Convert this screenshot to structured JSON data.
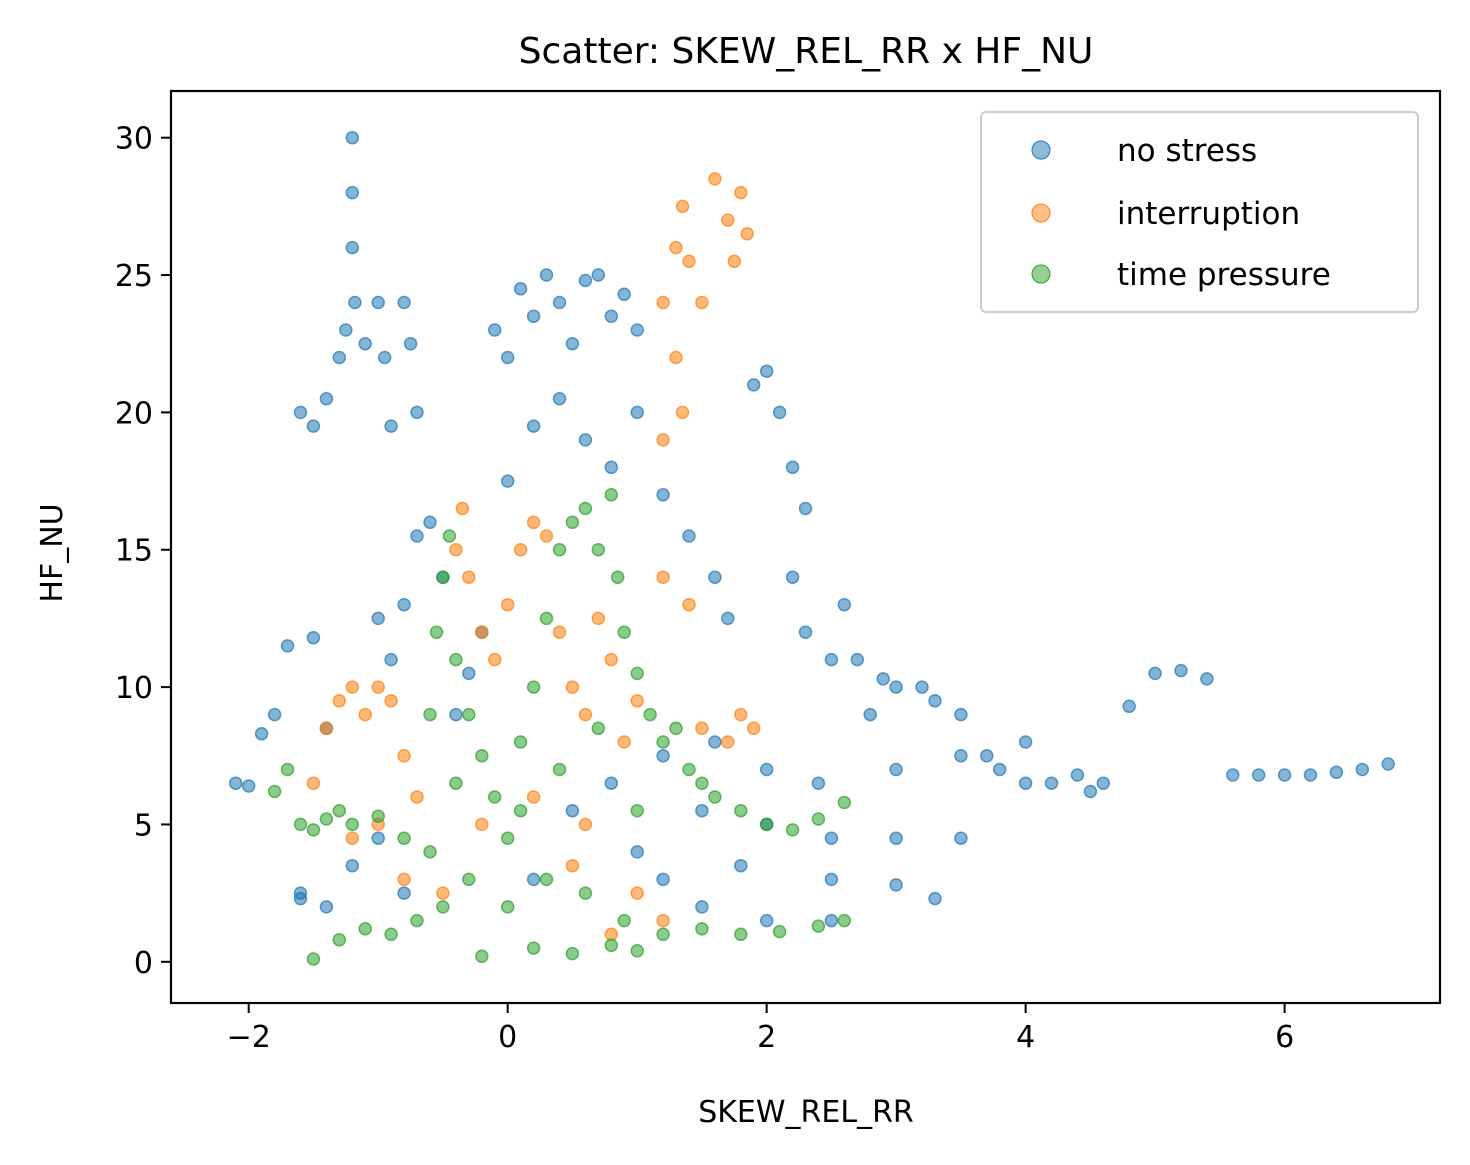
{
  "chart_data": {
    "type": "scatter",
    "title": "Scatter: SKEW_REL_RR x HF_NU",
    "xlabel": "SKEW_REL_RR",
    "ylabel": "HF_NU",
    "xlim": [
      -2.6,
      7.2
    ],
    "ylim": [
      -1.5,
      31.7
    ],
    "x_ticks": [
      -2,
      0,
      2,
      4,
      6
    ],
    "x_tick_labels": [
      "−2",
      "0",
      "2",
      "4",
      "6"
    ],
    "y_ticks": [
      0,
      5,
      10,
      15,
      20,
      25,
      30
    ],
    "y_tick_labels": [
      "0",
      "5",
      "10",
      "15",
      "20",
      "25",
      "30"
    ],
    "grid": false,
    "legend_position": "upper-right",
    "series": [
      {
        "name": "no stress",
        "color": "#1f77b4",
        "points": [
          [
            -2.1,
            6.5
          ],
          [
            -2.0,
            6.4
          ],
          [
            -1.9,
            8.3
          ],
          [
            -1.8,
            9.0
          ],
          [
            -1.7,
            11.5
          ],
          [
            -1.6,
            2.5
          ],
          [
            -1.5,
            11.8
          ],
          [
            -1.4,
            8.5
          ],
          [
            -1.6,
            20.0
          ],
          [
            -1.5,
            19.5
          ],
          [
            -1.4,
            20.5
          ],
          [
            -1.3,
            22.0
          ],
          [
            -1.25,
            23.0
          ],
          [
            -1.2,
            30.0
          ],
          [
            -1.2,
            28.0
          ],
          [
            -1.2,
            26.0
          ],
          [
            -1.18,
            24.0
          ],
          [
            -1.1,
            22.5
          ],
          [
            -1.0,
            24.0
          ],
          [
            -0.95,
            22.0
          ],
          [
            -0.9,
            19.5
          ],
          [
            -0.8,
            24.0
          ],
          [
            -0.75,
            22.5
          ],
          [
            -0.7,
            20.0
          ],
          [
            -1.0,
            12.5
          ],
          [
            -0.9,
            11.0
          ],
          [
            -0.8,
            13.0
          ],
          [
            -0.7,
            15.5
          ],
          [
            -0.6,
            16.0
          ],
          [
            -0.5,
            14.0
          ],
          [
            -0.4,
            9.0
          ],
          [
            -0.3,
            10.5
          ],
          [
            -0.2,
            12.0
          ],
          [
            -0.1,
            23.0
          ],
          [
            0.0,
            22.0
          ],
          [
            0.1,
            24.5
          ],
          [
            0.2,
            23.5
          ],
          [
            0.3,
            25.0
          ],
          [
            0.4,
            24.0
          ],
          [
            0.5,
            22.5
          ],
          [
            0.6,
            24.8
          ],
          [
            0.7,
            25.0
          ],
          [
            0.8,
            23.5
          ],
          [
            0.9,
            24.3
          ],
          [
            1.0,
            23.0
          ],
          [
            0.0,
            17.5
          ],
          [
            0.2,
            19.5
          ],
          [
            0.4,
            20.5
          ],
          [
            0.6,
            19.0
          ],
          [
            0.8,
            18.0
          ],
          [
            1.0,
            20.0
          ],
          [
            1.2,
            17.0
          ],
          [
            1.4,
            15.5
          ],
          [
            1.6,
            14.0
          ],
          [
            1.7,
            12.5
          ],
          [
            1.9,
            21.0
          ],
          [
            2.0,
            21.5
          ],
          [
            2.1,
            20.0
          ],
          [
            2.2,
            18.0
          ],
          [
            2.3,
            16.5
          ],
          [
            2.2,
            14.0
          ],
          [
            2.3,
            12.0
          ],
          [
            2.5,
            11.0
          ],
          [
            2.6,
            13.0
          ],
          [
            2.7,
            11.0
          ],
          [
            2.8,
            9.0
          ],
          [
            2.9,
            10.3
          ],
          [
            3.0,
            10.0
          ],
          [
            3.2,
            10.0
          ],
          [
            3.3,
            9.5
          ],
          [
            3.5,
            9.0
          ],
          [
            3.7,
            7.5
          ],
          [
            3.8,
            7.0
          ],
          [
            4.0,
            6.5
          ],
          [
            4.2,
            6.5
          ],
          [
            4.4,
            6.8
          ],
          [
            4.6,
            6.5
          ],
          [
            4.8,
            9.3
          ],
          [
            5.0,
            10.5
          ],
          [
            5.2,
            10.6
          ],
          [
            5.4,
            10.3
          ],
          [
            5.6,
            6.8
          ],
          [
            5.8,
            6.8
          ],
          [
            6.0,
            6.8
          ],
          [
            6.2,
            6.8
          ],
          [
            6.4,
            6.9
          ],
          [
            6.6,
            7.0
          ],
          [
            6.8,
            7.2
          ],
          [
            1.0,
            4.0
          ],
          [
            1.5,
            5.5
          ],
          [
            2.0,
            5.0
          ],
          [
            2.5,
            4.5
          ],
          [
            3.0,
            4.5
          ],
          [
            3.5,
            4.5
          ],
          [
            1.2,
            3.0
          ],
          [
            1.8,
            3.5
          ],
          [
            2.5,
            3.0
          ],
          [
            3.0,
            2.8
          ],
          [
            3.3,
            2.3
          ],
          [
            1.5,
            2.0
          ],
          [
            2.0,
            1.5
          ],
          [
            2.5,
            1.5
          ],
          [
            -1.6,
            2.3
          ],
          [
            -1.4,
            2.0
          ],
          [
            -1.2,
            3.5
          ],
          [
            -1.0,
            4.5
          ],
          [
            -0.8,
            2.5
          ],
          [
            0.2,
            3.0
          ],
          [
            0.5,
            5.5
          ],
          [
            0.8,
            6.5
          ],
          [
            1.2,
            7.5
          ],
          [
            1.6,
            8.0
          ],
          [
            2.0,
            7.0
          ],
          [
            2.4,
            6.5
          ],
          [
            3.0,
            7.0
          ],
          [
            3.5,
            7.5
          ],
          [
            4.0,
            8.0
          ],
          [
            4.5,
            6.2
          ]
        ]
      },
      {
        "name": "interruption",
        "color": "#ff7f0e",
        "points": [
          [
            1.2,
            24.0
          ],
          [
            1.3,
            26.0
          ],
          [
            1.35,
            27.5
          ],
          [
            1.4,
            25.5
          ],
          [
            1.5,
            24.0
          ],
          [
            1.6,
            28.5
          ],
          [
            1.7,
            27.0
          ],
          [
            1.75,
            25.5
          ],
          [
            1.8,
            28.0
          ],
          [
            1.85,
            26.5
          ],
          [
            1.3,
            22.0
          ],
          [
            1.35,
            20.0
          ],
          [
            1.2,
            19.0
          ],
          [
            -1.5,
            6.5
          ],
          [
            -1.4,
            8.5
          ],
          [
            -1.3,
            9.5
          ],
          [
            -1.2,
            10.0
          ],
          [
            -1.1,
            9.0
          ],
          [
            -1.0,
            10.0
          ],
          [
            -0.9,
            9.5
          ],
          [
            -0.8,
            7.5
          ],
          [
            -0.7,
            6.0
          ],
          [
            -1.0,
            5.0
          ],
          [
            -1.2,
            4.5
          ],
          [
            -0.4,
            15.0
          ],
          [
            -0.35,
            16.5
          ],
          [
            -0.3,
            14.0
          ],
          [
            -0.2,
            12.0
          ],
          [
            -0.1,
            11.0
          ],
          [
            0.0,
            13.0
          ],
          [
            0.1,
            15.0
          ],
          [
            0.2,
            16.0
          ],
          [
            0.3,
            15.5
          ],
          [
            0.4,
            12.0
          ],
          [
            0.5,
            10.0
          ],
          [
            0.6,
            9.0
          ],
          [
            0.7,
            12.5
          ],
          [
            0.8,
            11.0
          ],
          [
            0.9,
            8.0
          ],
          [
            1.0,
            9.5
          ],
          [
            1.2,
            14.0
          ],
          [
            1.4,
            13.0
          ],
          [
            1.5,
            8.5
          ],
          [
            1.7,
            8.0
          ],
          [
            1.8,
            9.0
          ],
          [
            1.9,
            8.5
          ],
          [
            -0.5,
            2.5
          ],
          [
            -0.8,
            3.0
          ],
          [
            0.5,
            3.5
          ],
          [
            1.0,
            2.5
          ],
          [
            1.2,
            1.5
          ],
          [
            0.8,
            1.0
          ],
          [
            -0.2,
            5.0
          ],
          [
            0.2,
            6.0
          ],
          [
            0.6,
            5.0
          ]
        ]
      },
      {
        "name": "time pressure",
        "color": "#2ca02c",
        "points": [
          [
            -1.8,
            6.2
          ],
          [
            -1.7,
            7.0
          ],
          [
            -1.6,
            5.0
          ],
          [
            -1.5,
            4.8
          ],
          [
            -1.4,
            5.2
          ],
          [
            -1.3,
            5.5
          ],
          [
            -1.2,
            5.0
          ],
          [
            -1.0,
            5.3
          ],
          [
            -0.8,
            4.5
          ],
          [
            -1.5,
            0.1
          ],
          [
            -1.3,
            0.8
          ],
          [
            -1.1,
            1.2
          ],
          [
            -0.9,
            1.0
          ],
          [
            -0.7,
            1.5
          ],
          [
            -0.5,
            2.0
          ],
          [
            -0.6,
            9.0
          ],
          [
            -0.55,
            12.0
          ],
          [
            -0.5,
            14.0
          ],
          [
            -0.45,
            15.5
          ],
          [
            -0.4,
            11.0
          ],
          [
            -0.3,
            9.0
          ],
          [
            -0.2,
            7.5
          ],
          [
            -0.1,
            6.0
          ],
          [
            0.0,
            4.5
          ],
          [
            0.1,
            8.0
          ],
          [
            0.2,
            10.0
          ],
          [
            0.3,
            12.5
          ],
          [
            0.4,
            15.0
          ],
          [
            0.5,
            16.0
          ],
          [
            0.6,
            16.5
          ],
          [
            0.7,
            15.0
          ],
          [
            0.8,
            17.0
          ],
          [
            0.85,
            14.0
          ],
          [
            0.9,
            12.0
          ],
          [
            1.0,
            10.5
          ],
          [
            1.1,
            9.0
          ],
          [
            1.2,
            8.0
          ],
          [
            1.3,
            8.5
          ],
          [
            1.4,
            7.0
          ],
          [
            1.5,
            6.5
          ],
          [
            1.6,
            6.0
          ],
          [
            1.8,
            5.5
          ],
          [
            2.0,
            5.0
          ],
          [
            2.2,
            4.8
          ],
          [
            2.4,
            5.2
          ],
          [
            2.6,
            5.8
          ],
          [
            -0.3,
            3.0
          ],
          [
            0.0,
            2.0
          ],
          [
            0.3,
            3.0
          ],
          [
            0.6,
            2.5
          ],
          [
            0.9,
            1.5
          ],
          [
            1.2,
            1.0
          ],
          [
            1.5,
            1.2
          ],
          [
            1.8,
            1.0
          ],
          [
            2.1,
            1.1
          ],
          [
            2.4,
            1.3
          ],
          [
            2.6,
            1.5
          ],
          [
            -0.2,
            0.2
          ],
          [
            0.2,
            0.5
          ],
          [
            0.5,
            0.3
          ],
          [
            0.8,
            0.6
          ],
          [
            1.0,
            0.4
          ],
          [
            -0.4,
            6.5
          ],
          [
            0.4,
            7.0
          ],
          [
            0.7,
            8.5
          ],
          [
            1.0,
            5.5
          ],
          [
            -0.6,
            4.0
          ],
          [
            0.1,
            5.5
          ]
        ]
      }
    ]
  }
}
